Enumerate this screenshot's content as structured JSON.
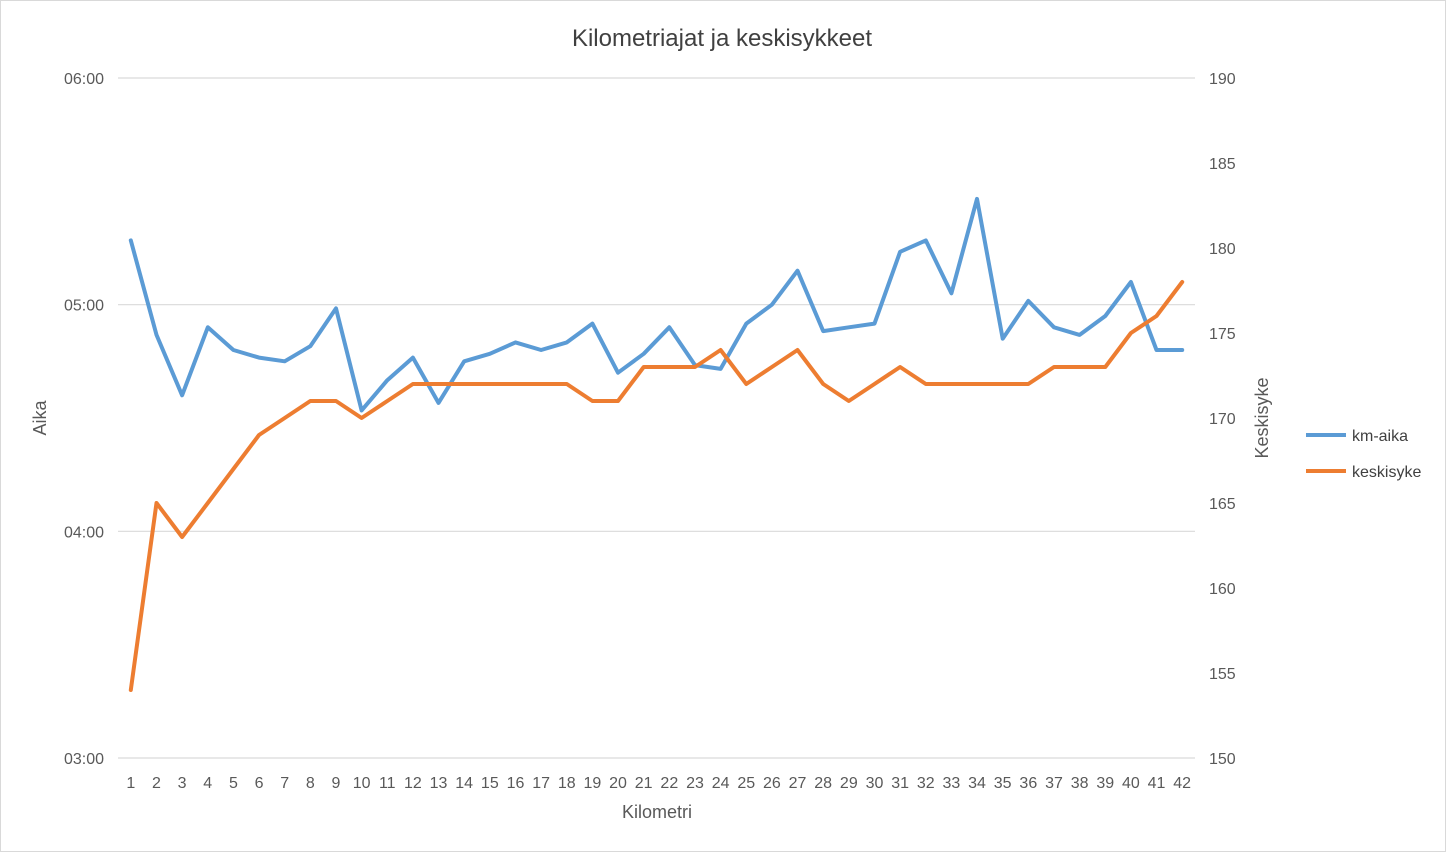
{
  "chart_data": {
    "type": "line",
    "title": "Kilometriajat ja keskisykkeet",
    "xlabel": "Kilometri",
    "ylabel_left": "Aika",
    "ylabel_right": "Keskisyke",
    "categories": [
      "1",
      "2",
      "3",
      "4",
      "5",
      "6",
      "7",
      "8",
      "9",
      "10",
      "11",
      "12",
      "13",
      "14",
      "15",
      "16",
      "17",
      "18",
      "19",
      "20",
      "21",
      "22",
      "23",
      "24",
      "25",
      "26",
      "27",
      "28",
      "29",
      "30",
      "31",
      "32",
      "33",
      "34",
      "35",
      "36",
      "37",
      "38",
      "39",
      "40",
      "41",
      "42"
    ],
    "y_left": {
      "unit": "mm:ss",
      "min_seconds": 180,
      "max_seconds": 360,
      "tick_labels": [
        "03:00",
        "04:00",
        "05:00",
        "06:00"
      ]
    },
    "y_right": {
      "min": 150,
      "max": 190,
      "tick_labels": [
        "150",
        "155",
        "160",
        "165",
        "170",
        "175",
        "180",
        "185",
        "190"
      ]
    },
    "grid": "horizontal, left axis",
    "legend_position": "right",
    "series": [
      {
        "name": "km-aika",
        "axis": "left",
        "color": "#5B9BD5",
        "values": [
          "05:17",
          "04:52",
          "04:36",
          "04:54",
          "04:48",
          "04:46",
          "04:45",
          "04:49",
          "04:59",
          "04:32",
          "04:40",
          "04:46",
          "04:34",
          "04:45",
          "04:47",
          "04:50",
          "04:48",
          "04:50",
          "04:55",
          "04:42",
          "04:47",
          "04:54",
          "04:44",
          "04:43",
          "04:55",
          "05:00",
          "05:09",
          "04:53",
          "04:54",
          "04:55",
          "05:14",
          "05:17",
          "05:03",
          "05:28",
          "04:51",
          "05:01",
          "04:54",
          "04:52",
          "04:57",
          "05:06",
          "04:48",
          "04:48"
        ]
      },
      {
        "name": "keskisyke",
        "axis": "right",
        "color": "#ED7D31",
        "values": [
          154,
          165,
          163,
          165,
          167,
          169,
          170,
          171,
          171,
          170,
          171,
          172,
          172,
          172,
          172,
          172,
          172,
          172,
          171,
          171,
          173,
          173,
          173,
          174,
          172,
          173,
          174,
          172,
          171,
          172,
          173,
          172,
          172,
          172,
          172,
          172,
          173,
          173,
          173,
          175,
          176,
          178
        ]
      }
    ]
  }
}
